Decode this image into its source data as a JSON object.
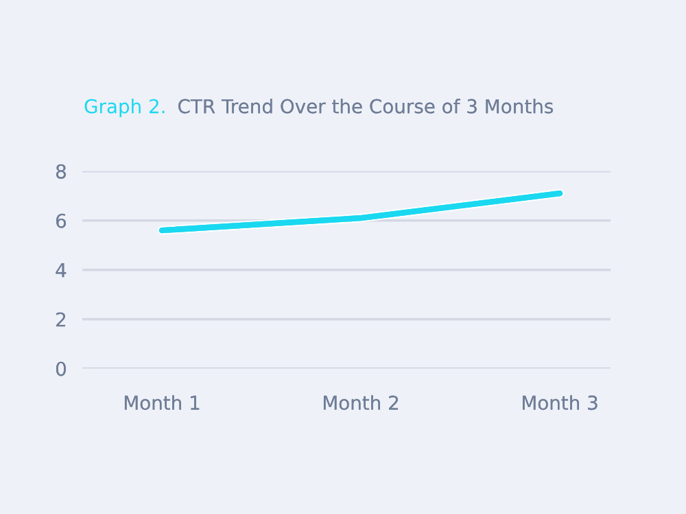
{
  "chart_data": {
    "type": "line",
    "title": "Graph 2.",
    "subtitle": "CTR Trend Over the Course of 3 Months",
    "categories": [
      "Month 1",
      "Month 2",
      "Month 3"
    ],
    "series": [
      {
        "color": "#1ad8f0",
        "values": [
          5.6,
          6.1,
          7.1
        ]
      }
    ],
    "ylim": [
      0,
      8
    ],
    "yticks": [
      0,
      2,
      4,
      6,
      8
    ],
    "grid": "y",
    "marker": "none",
    "line_style": "solid"
  }
}
